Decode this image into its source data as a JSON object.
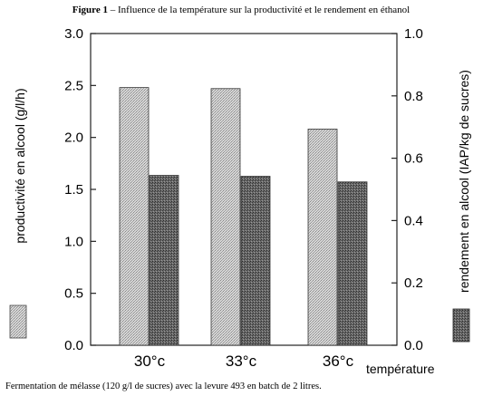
{
  "figure": {
    "title_prefix": "Figure 1",
    "title": " – Influence de la température sur la productivité et le rendement en éthanol",
    "caption": "Fermentation de mélasse (120 g/l de sucres) avec la levure 493 en batch de 2 litres."
  },
  "chart_data": {
    "type": "bar",
    "categories": [
      "30°c",
      "33°c",
      "36°c"
    ],
    "xlabel": "température",
    "ylabel_left": "productivité en alcool (g/l/h)",
    "ylabel_right": "rendement en alcool (IAP/kg de sucres)",
    "ylim_left": [
      0,
      3
    ],
    "ylim_right": [
      0,
      1
    ],
    "yticks_left": [
      "0.0",
      "0.5",
      "1.0",
      "1.5",
      "2.0",
      "2.5",
      "3.0"
    ],
    "yticks_right": [
      "0.0",
      "0.2",
      "0.4",
      "0.6",
      "0.8",
      "1.0"
    ],
    "series": [
      {
        "axis": "left",
        "values": [
          2.48,
          2.47,
          2.08
        ],
        "pattern": "light-stipple",
        "color": "#c8c8c8"
      },
      {
        "axis": "right",
        "values": [
          0.545,
          0.542,
          0.524
        ],
        "pattern": "dark-stipple",
        "color": "#5a5a5a"
      }
    ],
    "grid": false,
    "legend": "swatches-beside-axis-labels"
  }
}
